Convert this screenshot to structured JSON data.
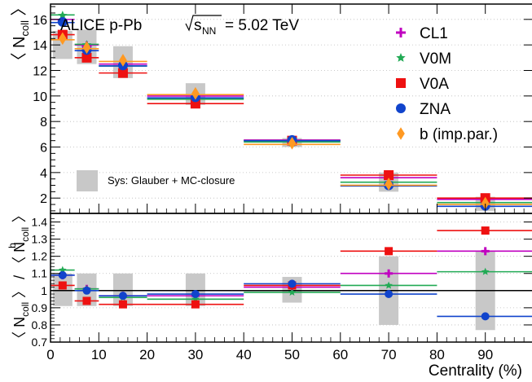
{
  "chart_data": {
    "type": "scatter",
    "x": {
      "label": "Centrality (%)",
      "lim": [
        0,
        100
      ],
      "ticks": [
        "0",
        "10",
        "20",
        "30",
        "40",
        "50",
        "60",
        "70",
        "80",
        "90"
      ],
      "bins": [
        [
          0,
          5
        ],
        [
          5,
          10
        ],
        [
          10,
          20
        ],
        [
          20,
          40
        ],
        [
          40,
          60
        ],
        [
          60,
          80
        ],
        [
          80,
          100
        ]
      ]
    },
    "top": {
      "title": "ALICE p-Pb",
      "energy_label": "= 5.02 TeV",
      "energy_sqrt": "s",
      "energy_sub": "NN",
      "ylabel": {
        "main": "〈 N",
        "sub": "coll",
        "close": " 〉"
      },
      "ylim": [
        0.8,
        17.2
      ],
      "yticks": [
        "2",
        "4",
        "6",
        "8",
        "10",
        "12",
        "14",
        "16"
      ],
      "sys_label": "Sys: Glauber + MC-closure",
      "sys_boxes": [
        {
          "x": 2.5,
          "y": [
            12.9,
            15.1
          ]
        },
        {
          "x": 7.5,
          "y": [
            12.5,
            15.2
          ]
        },
        {
          "x": 15,
          "y": [
            11.4,
            13.9
          ]
        },
        {
          "x": 30,
          "y": [
            9.3,
            11.0
          ]
        },
        {
          "x": 50,
          "y": [
            6.0,
            6.7
          ]
        },
        {
          "x": 70,
          "y": [
            2.5,
            4.0
          ]
        },
        {
          "x": 90,
          "y": [
            1.0,
            2.1
          ]
        }
      ],
      "series": [
        {
          "name": "CL1",
          "color": "#c000c0",
          "marker": "plus",
          "values": [
            15.9,
            13.9,
            12.4,
            9.9,
            6.45,
            3.5,
            1.8
          ]
        },
        {
          "name": "V0M",
          "color": "#22aa55",
          "marker": "star",
          "values": [
            16.3,
            14.0,
            12.3,
            9.7,
            6.35,
            3.2,
            1.6
          ]
        },
        {
          "name": "V0A",
          "color": "#ee1111",
          "marker": "square",
          "values": [
            14.8,
            13.0,
            11.8,
            9.4,
            6.5,
            3.8,
            2.0
          ]
        },
        {
          "name": "ZNA",
          "color": "#1144cc",
          "marker": "circle",
          "values": [
            15.8,
            13.6,
            12.4,
            9.9,
            6.55,
            3.0,
            1.4
          ]
        },
        {
          "name": "b (imp.par.)",
          "color": "#ff9922",
          "marker": "diamond",
          "values": [
            14.5,
            13.8,
            12.8,
            10.2,
            6.3,
            3.1,
            1.6
          ]
        }
      ]
    },
    "bottom": {
      "ylabel": {
        "main": "〈 N",
        "sub": "coll",
        "mid": " 〉 / 〈 N",
        "sub2": "coll",
        "sup2": "b",
        "close": " 〉"
      },
      "ylim": [
        0.7,
        1.45
      ],
      "yticks": [
        "0.7",
        "0.8",
        "0.9",
        "1",
        "1.1",
        "1.2",
        "1.3",
        "1.4"
      ],
      "reference_line": 1,
      "sys_boxes": [
        {
          "x": 2.5,
          "y": [
            0.91,
            1.1
          ]
        },
        {
          "x": 7.5,
          "y": [
            0.91,
            1.1
          ]
        },
        {
          "x": 15,
          "y": [
            0.91,
            1.1
          ]
        },
        {
          "x": 30,
          "y": [
            0.91,
            1.1
          ]
        },
        {
          "x": 50,
          "y": [
            0.93,
            1.08
          ]
        },
        {
          "x": 70,
          "y": [
            0.8,
            1.2
          ]
        },
        {
          "x": 90,
          "y": [
            0.77,
            1.23
          ]
        }
      ],
      "series": [
        {
          "name": "CL1",
          "values": [
            1.09,
            1.01,
            0.97,
            0.97,
            1.02,
            1.1,
            1.23
          ]
        },
        {
          "name": "V0M",
          "values": [
            1.12,
            1.01,
            0.96,
            0.95,
            0.99,
            1.03,
            1.11
          ]
        },
        {
          "name": "V0A",
          "values": [
            1.03,
            0.94,
            0.92,
            0.92,
            1.03,
            1.23,
            1.35
          ]
        },
        {
          "name": "ZNA",
          "values": [
            1.09,
            1.0,
            0.97,
            0.98,
            1.04,
            0.98,
            0.85
          ]
        }
      ]
    }
  }
}
